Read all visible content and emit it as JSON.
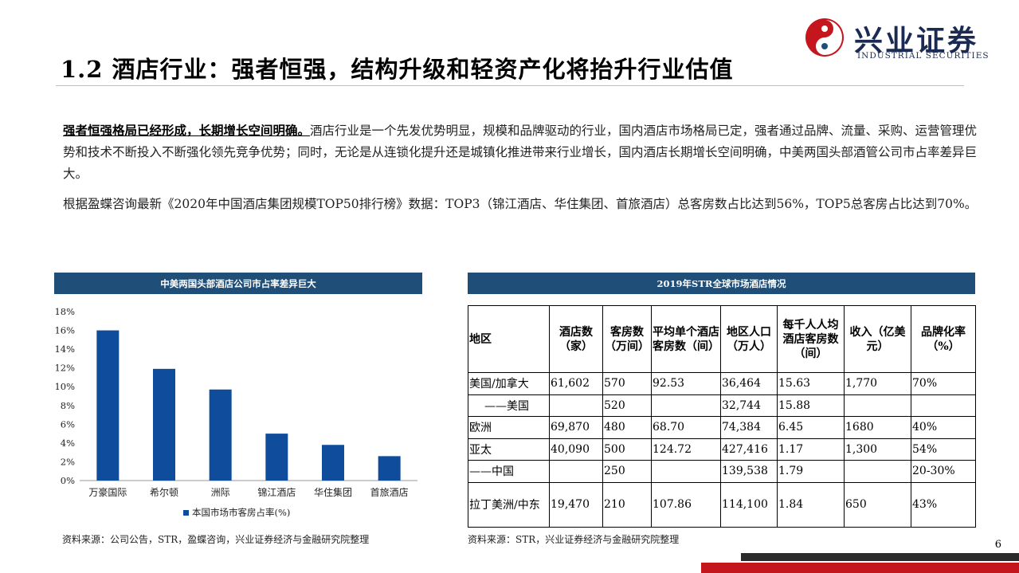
{
  "logo": {
    "cn": "兴业证券",
    "en": "INDUSTRIAL SECURITIES",
    "colors": {
      "red": "#c4161c",
      "blue": "#1f4e79"
    }
  },
  "title": "1.2 酒店行业：强者恒强，结构升级和轻资产化将抬升行业估值",
  "para1": {
    "lead": "强者恒强格局已经形成，长期增长空间明确。",
    "body": "酒店行业是一个先发优势明显，规模和品牌驱动的行业，国内酒店市场格局已定，强者通过品牌、流量、采购、运营管理优势和技术不断投入不断强化领先竞争优势；同时，无论是从连锁化提升还是城镇化推进带来行业增长，国内酒店长期增长空间明确，中美两国头部酒管公司市占率差异巨大。"
  },
  "para2": "根据盈蝶咨询最新《2020年中国酒店集团规模TOP50排行榜》数据：TOP3（锦江酒店、华住集团、首旅酒店）总客房数占比达到56%，TOP5总客房占比达到70%。",
  "chart_header": "中美两国头部酒店公司市占率差异巨大",
  "chart_data": {
    "type": "bar",
    "categories": [
      "万豪国际",
      "希尔顿",
      "洲际",
      "锦江酒店",
      "华住集团",
      "首旅酒店"
    ],
    "series": [
      {
        "name": "本国市场市客房占率(%)",
        "values": [
          16.0,
          11.9,
          9.7,
          5.0,
          3.8,
          2.6
        ]
      }
    ],
    "ylim": [
      0,
      18
    ],
    "yticks": [
      "0%",
      "2%",
      "4%",
      "6%",
      "8%",
      "10%",
      "12%",
      "14%",
      "16%",
      "18%"
    ],
    "bar_color": "#0f4c9c",
    "legend_position": "bottom"
  },
  "chart_source": "资料来源：公司公告，STR，盈蝶咨询，兴业证券经济与金融研究院整理",
  "table_header": "2019年STR全球市场酒店情况",
  "table": {
    "headers": [
      "地区",
      "酒店数（家）",
      "客房数（万间）",
      "平均单个酒店客房数（间）",
      "地区人口（万人）",
      "每千人人均酒店客房数（间）",
      "收入（亿美元）",
      "品牌化率（%）"
    ],
    "rows": [
      [
        "美国/加拿大",
        "61,602",
        "570",
        "92.53",
        "36,464",
        "15.63",
        "1,770",
        "70%"
      ],
      [
        "——美国",
        "",
        "520",
        "",
        "32,744",
        "15.88",
        "",
        ""
      ],
      [
        "欧洲",
        "69,870",
        "480",
        "68.70",
        "74,384",
        "6.45",
        "1680",
        "40%"
      ],
      [
        "亚太",
        "40,090",
        "500",
        "124.72",
        "427,416",
        "1.17",
        "1,300",
        "54%"
      ],
      [
        "——中国",
        "",
        "250",
        "",
        "139,538",
        "1.79",
        "",
        "20-30%"
      ],
      [
        "拉丁美洲/中东",
        "19,470",
        "210",
        "107.86",
        "114,100",
        "1.84",
        "650",
        "43%"
      ]
    ]
  },
  "table_source": "资料来源：STR，兴业证券经济与金融研究院整理",
  "page_number": "6"
}
